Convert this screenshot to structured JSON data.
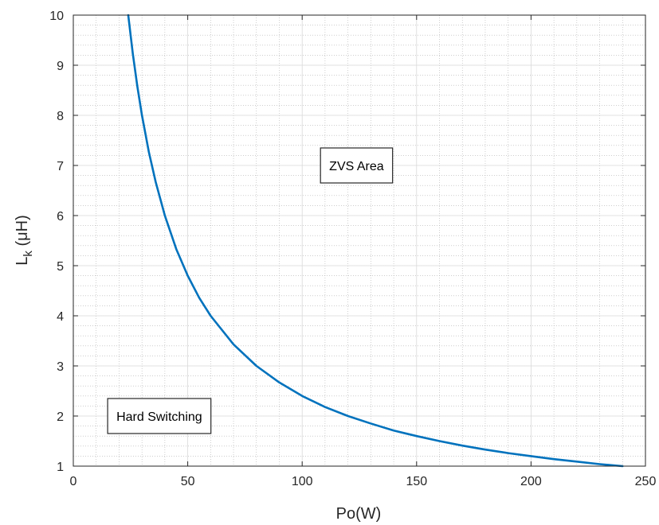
{
  "chart_data": {
    "type": "line",
    "title": "",
    "xlabel": "Po(W)",
    "ylabel_main": "L",
    "ylabel_sub": "k",
    "ylabel_unit": " (μH)",
    "xlim": [
      0,
      250
    ],
    "ylim": [
      1,
      10
    ],
    "xticks": [
      0,
      50,
      100,
      150,
      200,
      250
    ],
    "yticks": [
      1,
      2,
      3,
      4,
      5,
      6,
      7,
      8,
      9,
      10
    ],
    "grid": true,
    "minor_grid": true,
    "series": [
      {
        "color": "#0072BD",
        "x": [
          24,
          26,
          28,
          30,
          33,
          36,
          40,
          45,
          50,
          55,
          60,
          70,
          80,
          90,
          100,
          110,
          120,
          130,
          140,
          150,
          160,
          170,
          180,
          190,
          200,
          210,
          220,
          230,
          240
        ],
        "y": [
          10.0,
          9.23,
          8.57,
          8.0,
          7.27,
          6.67,
          6.0,
          5.33,
          4.8,
          4.36,
          4.0,
          3.43,
          3.0,
          2.67,
          2.4,
          2.18,
          2.0,
          1.85,
          1.71,
          1.6,
          1.5,
          1.41,
          1.33,
          1.26,
          1.2,
          1.14,
          1.09,
          1.04,
          1.0
        ]
      }
    ],
    "annotations": [
      {
        "text": "ZVS Area",
        "x": 108,
        "y": 7.0
      },
      {
        "text": "Hard Switching",
        "x": 15,
        "y": 2.0
      }
    ]
  }
}
